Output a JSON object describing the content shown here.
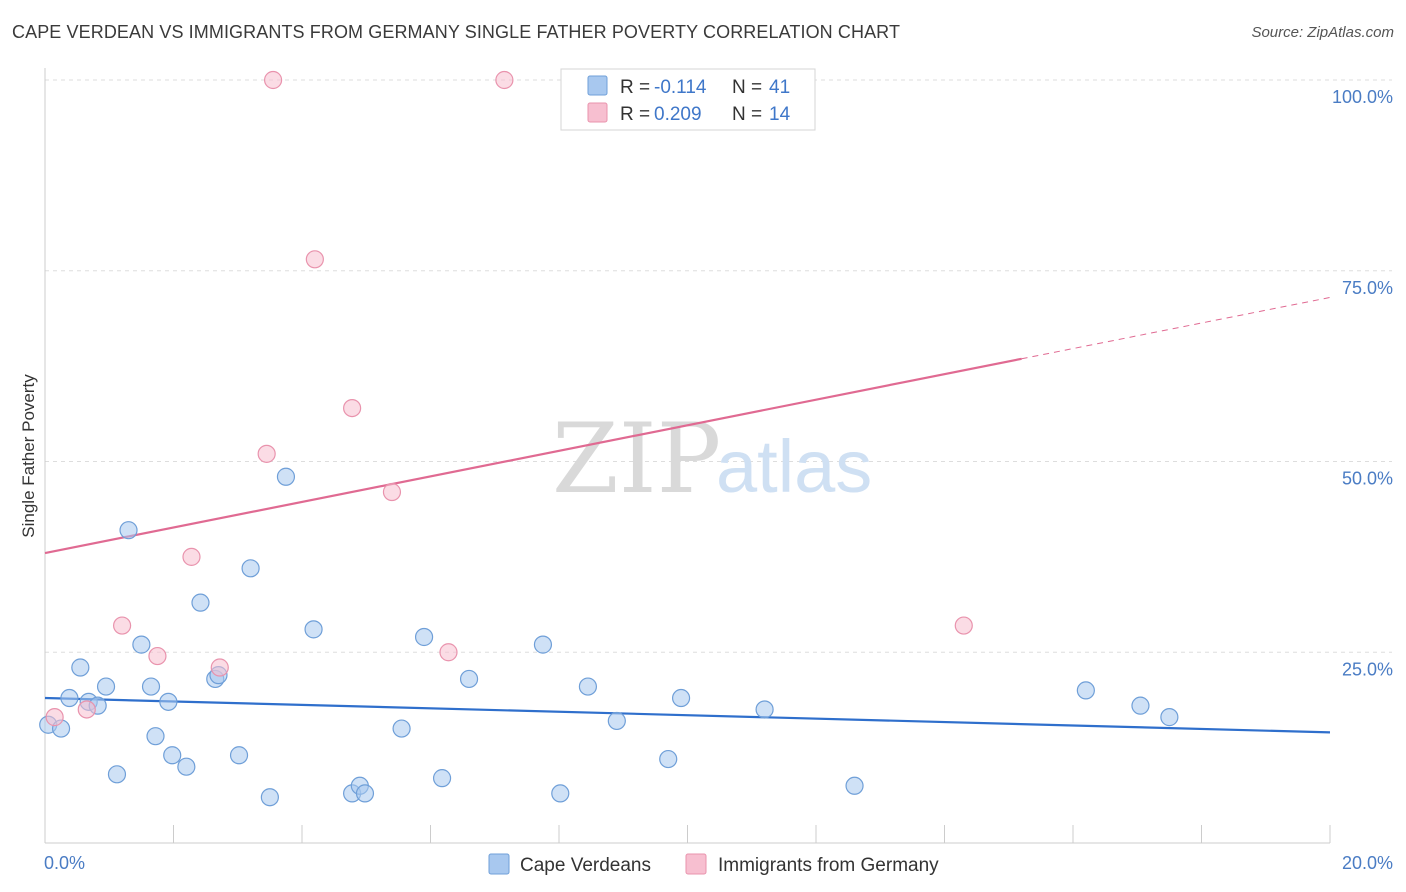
{
  "title": "CAPE VERDEAN VS IMMIGRANTS FROM GERMANY SINGLE FATHER POVERTY CORRELATION CHART",
  "source": "Source: ZipAtlas.com",
  "watermark": {
    "zip": "ZIP",
    "atlas": "atlas"
  },
  "colors": {
    "blue_fill": "#a8c8ef",
    "blue_stroke": "#6f9fd8",
    "blue_line": "#2f6fcc",
    "pink_fill": "#f7bfd0",
    "pink_stroke": "#e993ad",
    "pink_line": "#e06a92",
    "axis_label": "#4a7cc4",
    "grid": "#dddddd"
  },
  "legend": {
    "rows": [
      {
        "r_label": "R =",
        "r_value": "-0.114",
        "n_label": "N =",
        "n_value": "41"
      },
      {
        "r_label": "R =",
        "r_value": "0.209",
        "n_label": "N =",
        "n_value": "14"
      }
    ]
  },
  "chart_data": {
    "type": "scatter",
    "title": "CAPE VERDEAN VS IMMIGRANTS FROM GERMANY SINGLE FATHER POVERTY CORRELATION CHART",
    "xlabel": "",
    "ylabel": "Single Father Poverty",
    "xlim": [
      0,
      20
    ],
    "ylim": [
      0,
      100
    ],
    "x_tick_labels": [
      "0.0%",
      "20.0%"
    ],
    "y_tick_labels": [
      "25.0%",
      "50.0%",
      "75.0%",
      "100.0%"
    ],
    "y_tick_values": [
      25,
      50,
      75,
      100
    ],
    "series": [
      {
        "name": "Cape Verdeans",
        "color": "#a8c8ef",
        "points": [
          [
            0.05,
            15.5
          ],
          [
            0.25,
            15.0
          ],
          [
            0.38,
            19.0
          ],
          [
            0.55,
            23.0
          ],
          [
            0.68,
            18.5
          ],
          [
            0.82,
            18.0
          ],
          [
            0.95,
            20.5
          ],
          [
            1.12,
            9.0
          ],
          [
            1.3,
            41.0
          ],
          [
            1.5,
            26.0
          ],
          [
            1.65,
            20.5
          ],
          [
            1.72,
            14.0
          ],
          [
            1.92,
            18.5
          ],
          [
            1.98,
            11.5
          ],
          [
            2.2,
            10.0
          ],
          [
            2.42,
            31.5
          ],
          [
            2.65,
            21.5
          ],
          [
            2.7,
            22.0
          ],
          [
            3.02,
            11.5
          ],
          [
            3.2,
            36.0
          ],
          [
            3.5,
            6.0
          ],
          [
            3.75,
            48.0
          ],
          [
            4.18,
            28.0
          ],
          [
            4.78,
            6.5
          ],
          [
            4.9,
            7.5
          ],
          [
            4.98,
            6.5
          ],
          [
            5.55,
            15.0
          ],
          [
            5.9,
            27.0
          ],
          [
            6.18,
            8.5
          ],
          [
            6.6,
            21.5
          ],
          [
            7.75,
            26.0
          ],
          [
            8.02,
            6.5
          ],
          [
            8.45,
            20.5
          ],
          [
            8.9,
            16.0
          ],
          [
            9.7,
            11.0
          ],
          [
            9.9,
            19.0
          ],
          [
            11.2,
            17.5
          ],
          [
            12.6,
            7.5
          ],
          [
            16.2,
            20.0
          ],
          [
            17.05,
            18.0
          ],
          [
            17.5,
            16.5
          ]
        ]
      },
      {
        "name": "Immigrants from Germany",
        "color": "#f7bfd0",
        "points": [
          [
            0.15,
            16.5
          ],
          [
            0.65,
            17.5
          ],
          [
            1.2,
            28.5
          ],
          [
            1.75,
            24.5
          ],
          [
            2.28,
            37.5
          ],
          [
            2.72,
            23.0
          ],
          [
            3.45,
            51.0
          ],
          [
            3.55,
            100.0
          ],
          [
            4.2,
            76.5
          ],
          [
            4.78,
            57.0
          ],
          [
            5.4,
            46.0
          ],
          [
            6.28,
            25.0
          ],
          [
            7.15,
            100.0
          ],
          [
            14.3,
            28.5
          ]
        ]
      }
    ],
    "trendlines": [
      {
        "series": "Cape Verdeans",
        "x": [
          0,
          20
        ],
        "y": [
          19.0,
          14.5
        ],
        "dashed_from": null
      },
      {
        "series": "Immigrants from Germany",
        "x": [
          0,
          20
        ],
        "y": [
          38.0,
          71.5
        ],
        "dashed_from": 15.2
      }
    ]
  },
  "bottom_legend": [
    {
      "label": "Cape Verdeans"
    },
    {
      "label": "Immigrants from Germany"
    }
  ]
}
